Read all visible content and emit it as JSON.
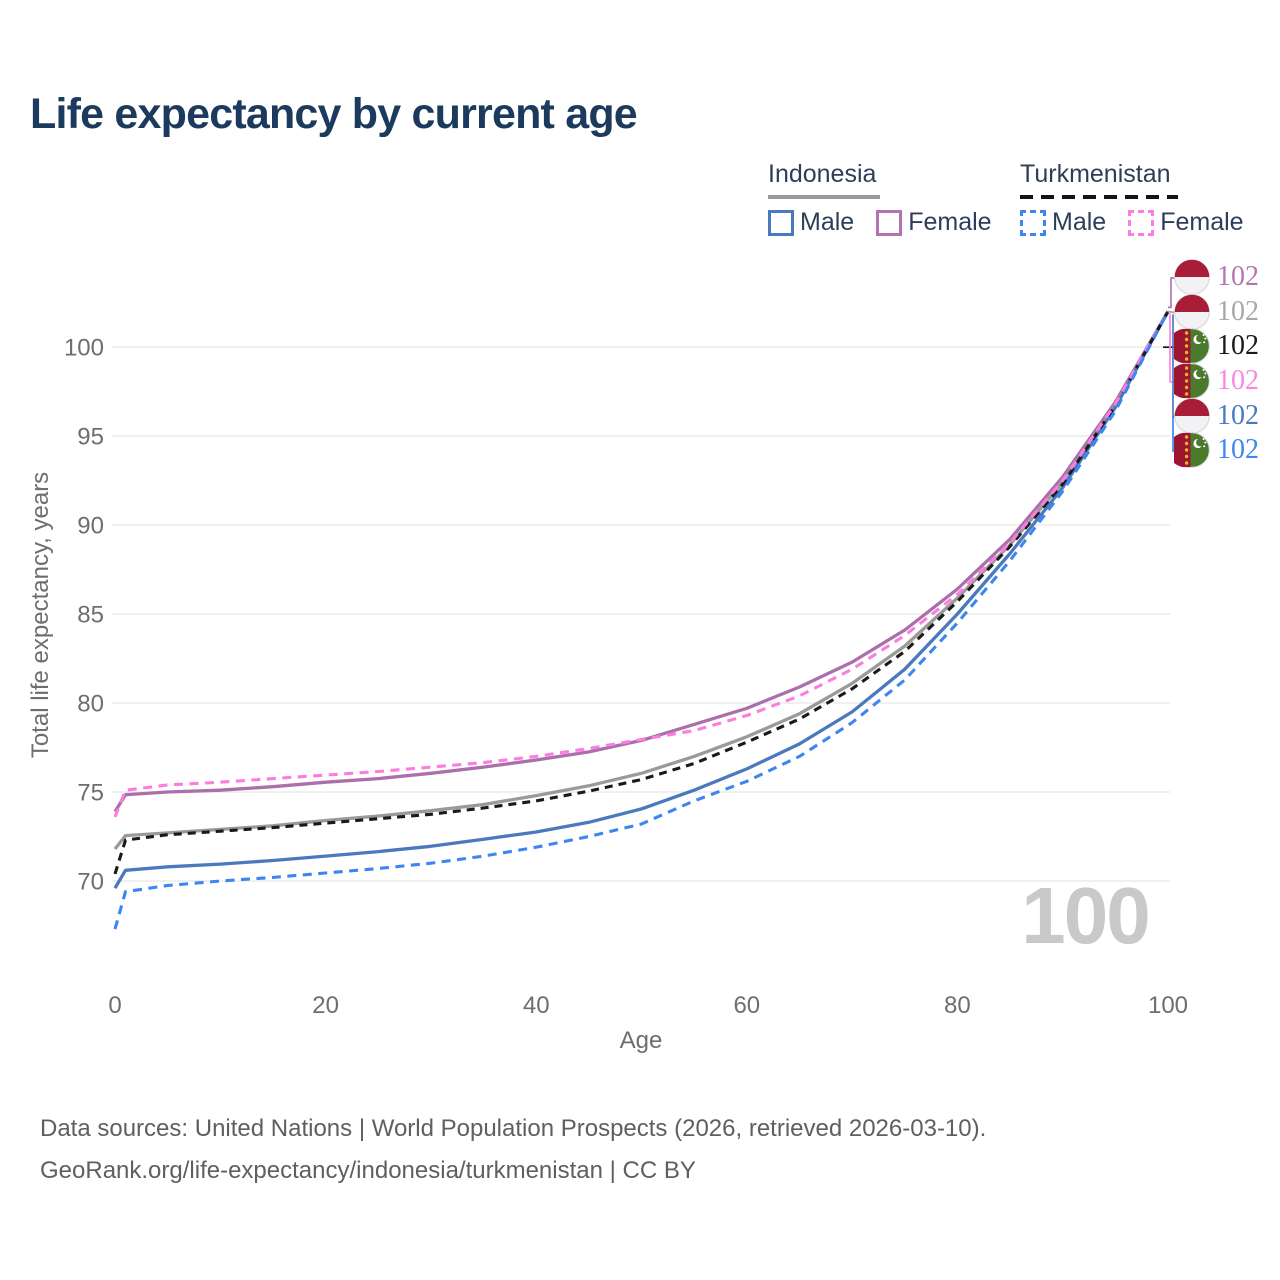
{
  "header": {
    "title": "Life expectancy by current age"
  },
  "legend": {
    "groups": [
      {
        "label": "Indonesia",
        "line_style": "solid",
        "line_color": "#9a9a9a",
        "items": [
          {
            "label": "Male",
            "color": "#4a79bd",
            "dashed": false
          },
          {
            "label": "Female",
            "color": "#b273b2",
            "dashed": false
          }
        ]
      },
      {
        "label": "Turkmenistan",
        "line_style": "dashed",
        "line_color": "#141414",
        "items": [
          {
            "label": "Male",
            "color": "#3d86f2",
            "dashed": true
          },
          {
            "label": "Female",
            "color": "#fb7de0",
            "dashed": true
          }
        ]
      }
    ]
  },
  "chart_data": {
    "type": "line",
    "title": "Life expectancy by current age",
    "xlabel": "Age",
    "ylabel": "Total life expectancy, years",
    "xlim": [
      0,
      100
    ],
    "ylim": [
      66.5,
      103.5
    ],
    "x_ticks": [
      0,
      20,
      40,
      60,
      80,
      100
    ],
    "y_ticks": [
      70,
      75,
      80,
      85,
      90,
      95,
      100
    ],
    "grid": "horizontal",
    "legend_position": "top-right",
    "hover_age_label": "100",
    "x": [
      0,
      1,
      5,
      10,
      15,
      20,
      25,
      30,
      35,
      40,
      45,
      50,
      55,
      60,
      65,
      70,
      75,
      80,
      85,
      90,
      95,
      100
    ],
    "series": [
      {
        "name": "Indonesia Female",
        "country": "Indonesia",
        "sex": "Female",
        "color": "#ab6fab",
        "dashed": false,
        "values": [
          73.9,
          74.85,
          75.0,
          75.1,
          75.3,
          75.55,
          75.75,
          76.05,
          76.4,
          76.8,
          77.25,
          77.9,
          78.8,
          79.7,
          80.9,
          82.3,
          84.1,
          86.4,
          89.2,
          92.7,
          96.9,
          102
        ]
      },
      {
        "name": "Indonesia",
        "country": "Indonesia",
        "sex": "Both",
        "color": "#9a9a9a",
        "dashed": false,
        "values": [
          71.8,
          72.55,
          72.7,
          72.9,
          73.1,
          73.4,
          73.65,
          73.95,
          74.3,
          74.8,
          75.35,
          76.05,
          77.0,
          78.1,
          79.4,
          81.1,
          83.2,
          85.9,
          88.9,
          92.4,
          96.7,
          102
        ]
      },
      {
        "name": "Indonesia Male",
        "country": "Indonesia",
        "sex": "Male",
        "color": "#4a79bd",
        "dashed": false,
        "values": [
          69.6,
          70.6,
          70.8,
          70.95,
          71.15,
          71.4,
          71.65,
          71.95,
          72.35,
          72.75,
          73.3,
          74.05,
          75.1,
          76.3,
          77.7,
          79.5,
          81.9,
          85.0,
          88.4,
          92.1,
          96.6,
          102
        ]
      },
      {
        "name": "Turkmenistan",
        "country": "Turkmenistan",
        "sex": "Both",
        "color": "#1a1a1a",
        "dashed": true,
        "values": [
          70.4,
          72.3,
          72.6,
          72.8,
          73.0,
          73.25,
          73.5,
          73.75,
          74.1,
          74.5,
          75.05,
          75.7,
          76.6,
          77.8,
          79.1,
          80.8,
          82.9,
          85.7,
          88.8,
          92.3,
          96.7,
          102
        ]
      },
      {
        "name": "Turkmenistan Female",
        "country": "Turkmenistan",
        "sex": "Female",
        "color": "#fb7de0",
        "dashed": true,
        "values": [
          73.6,
          75.1,
          75.4,
          75.55,
          75.75,
          75.95,
          76.15,
          76.4,
          76.65,
          77.0,
          77.45,
          77.95,
          78.45,
          79.3,
          80.4,
          81.9,
          83.8,
          86.1,
          89.0,
          92.5,
          96.8,
          102
        ]
      },
      {
        "name": "Turkmenistan Male",
        "country": "Turkmenistan",
        "sex": "Male",
        "color": "#3d86f2",
        "dashed": true,
        "values": [
          67.3,
          69.4,
          69.75,
          70.0,
          70.2,
          70.45,
          70.7,
          71.0,
          71.4,
          71.9,
          72.5,
          73.2,
          74.5,
          75.6,
          77.0,
          78.9,
          81.3,
          84.5,
          88.0,
          91.9,
          96.4,
          102
        ]
      }
    ]
  },
  "end_labels": [
    {
      "series": "Indonesia Female",
      "flag": "indonesia",
      "value": "102",
      "color": "#b477b4"
    },
    {
      "series": "Indonesia",
      "flag": "indonesia",
      "value": "102",
      "color": "#a8a8a8"
    },
    {
      "series": "Turkmenistan",
      "flag": "turkmenistan",
      "value": "102",
      "color": "#1a1a1a"
    },
    {
      "series": "Turkmenistan Female",
      "flag": "turkmenistan",
      "value": "102",
      "color": "#fc85e3"
    },
    {
      "series": "Indonesia Male",
      "flag": "indonesia",
      "value": "102",
      "color": "#4b7ac2"
    },
    {
      "series": "Turkmenistan Male",
      "flag": "turkmenistan",
      "value": "102",
      "color": "#3f87f2"
    }
  ],
  "footer": {
    "line1": "Data sources: United Nations | World Population Prospects (2026, retrieved 2026-03-10).",
    "line2": "GeoRank.org/life-expectancy/indonesia/turkmenistan | CC BY"
  }
}
